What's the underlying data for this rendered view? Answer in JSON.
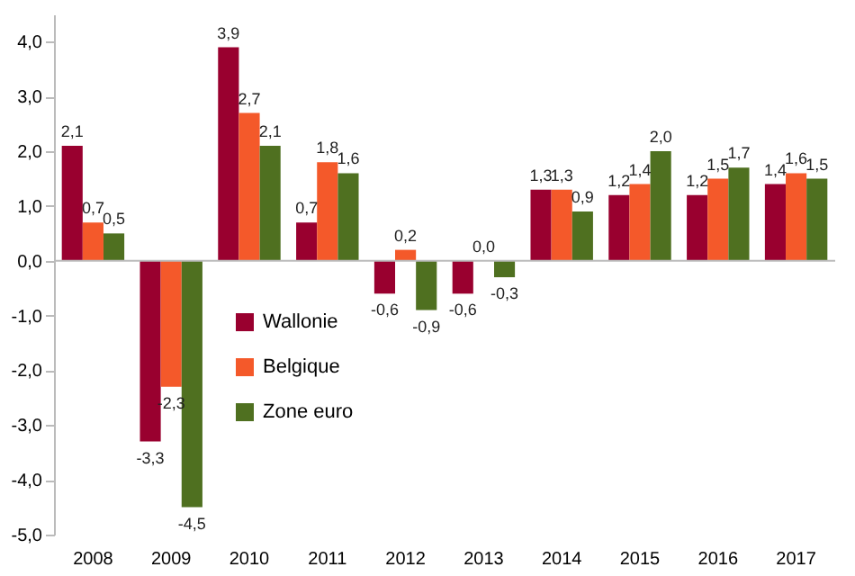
{
  "chart_data": {
    "type": "bar",
    "categories": [
      "2008",
      "2009",
      "2010",
      "2011",
      "2012",
      "2013",
      "2014",
      "2015",
      "2016",
      "2017"
    ],
    "series": [
      {
        "name": "Wallonie",
        "color": "#99002f",
        "values": [
          2.1,
          -3.3,
          3.9,
          0.7,
          -0.6,
          -0.6,
          1.3,
          1.2,
          1.2,
          1.4
        ]
      },
      {
        "name": "Belgique",
        "color": "#f4592a",
        "values": [
          0.7,
          -2.3,
          2.7,
          1.8,
          0.2,
          0.0,
          1.3,
          1.4,
          1.5,
          1.6
        ]
      },
      {
        "name": "Zone euro",
        "color": "#4f7020",
        "values": [
          0.5,
          -4.5,
          2.1,
          1.6,
          -0.9,
          -0.3,
          0.9,
          2.0,
          1.7,
          1.5
        ]
      }
    ],
    "ylim": [
      -5,
      4.5
    ],
    "yticks": [
      {
        "value": -5,
        "label": "-5,0"
      },
      {
        "value": -4,
        "label": "-4,0"
      },
      {
        "value": -3,
        "label": "-3,0"
      },
      {
        "value": -2,
        "label": "-2,0"
      },
      {
        "value": -1,
        "label": "-1,0"
      },
      {
        "value": 0,
        "label": "0,0"
      },
      {
        "value": 1,
        "label": "1,0"
      },
      {
        "value": 2,
        "label": "2,0"
      },
      {
        "value": 3,
        "label": "3,0"
      },
      {
        "value": 4,
        "label": "4,0"
      }
    ],
    "value_labels": [
      [
        "2,1",
        "-3,3",
        "3,9",
        "0,7",
        "-0,6",
        "-0,6",
        "1,3",
        "1,2",
        "1,2",
        "1,4"
      ],
      [
        "0,7",
        "-2,3",
        "2,7",
        "1,8",
        "0,2",
        "0,0",
        "1,3",
        "1,4",
        "1,5",
        "1,6"
      ],
      [
        "0,5",
        "-4,5",
        "2,1",
        "1,6",
        "-0,9",
        "-0,3",
        "0,9",
        "2,0",
        "1,7",
        "1,5"
      ]
    ],
    "legend": "left"
  }
}
